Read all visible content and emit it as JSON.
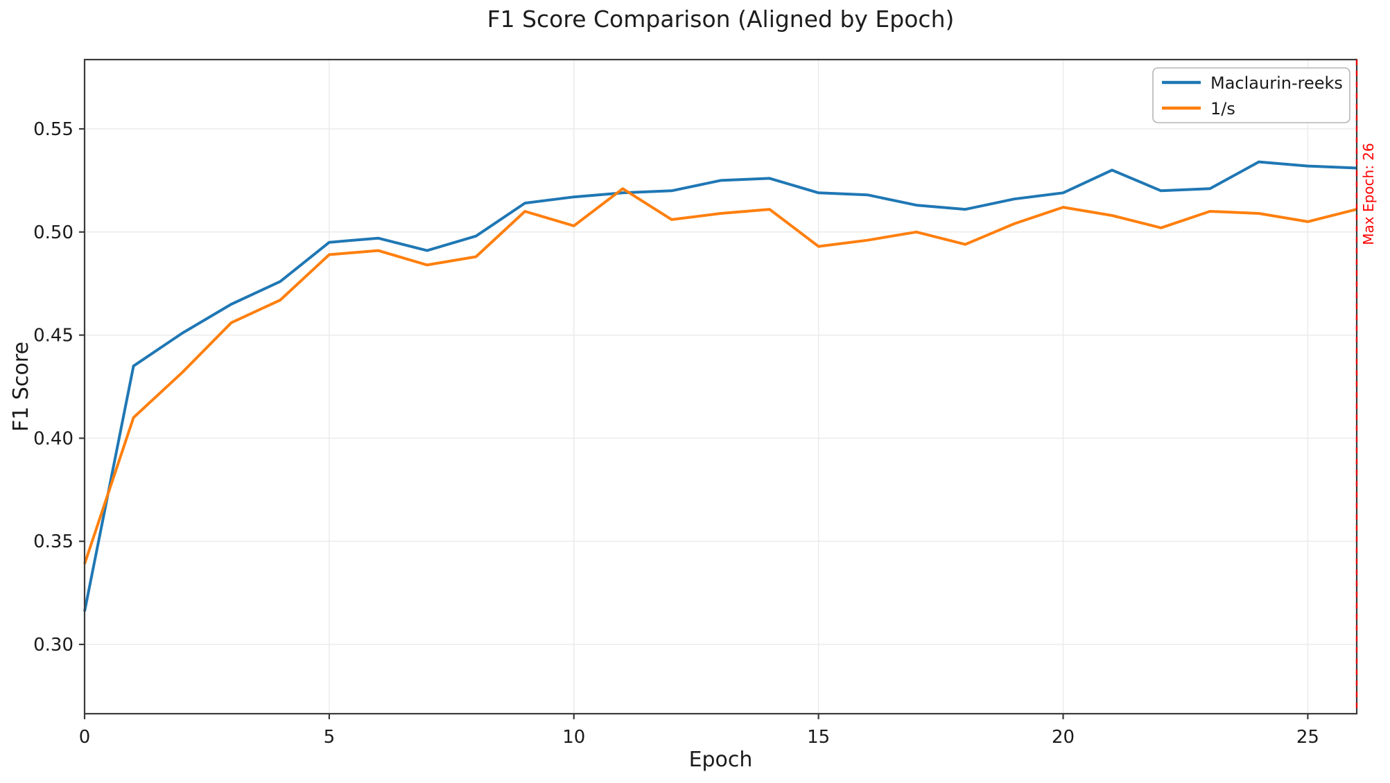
{
  "title": "F1 Score Comparison (Aligned by Epoch)",
  "axes": {
    "xlabel": "Epoch",
    "ylabel": "F1 Score"
  },
  "legend": {
    "position": "upper right",
    "entries": [
      {
        "label": "Maclaurin-reeks",
        "color": "#1f77b4"
      },
      {
        "label": "1/s",
        "color": "#ff7f0e"
      }
    ]
  },
  "annotation": {
    "label": "Max Epoch: 26",
    "x": 26,
    "color": "#ff0000",
    "line_style": "dashed"
  },
  "style": {
    "accent_blue": "#1f77b4",
    "accent_orange": "#ff7f0e",
    "annotation_red": "#ff0000",
    "spine_color": "#3a3a3a",
    "grid_color": "#ebebeb",
    "tick_label_color": "#1a1a1a",
    "legend_border_color": "#b5b5b5",
    "background": "#ffffff"
  },
  "chart_data": {
    "type": "line",
    "title": "F1 Score Comparison (Aligned by Epoch)",
    "xlabel": "Epoch",
    "ylabel": "F1 Score",
    "xlim": [
      0,
      26
    ],
    "ylim": [
      0.2664,
      0.5836
    ],
    "xticks": [
      0,
      5,
      10,
      15,
      20,
      25
    ],
    "xtick_labels": [
      "0",
      "5",
      "10",
      "15",
      "20",
      "25"
    ],
    "yticks": [
      0.3,
      0.35,
      0.4,
      0.45,
      0.5,
      0.55
    ],
    "ytick_labels": [
      "0.30",
      "0.35",
      "0.40",
      "0.45",
      "0.50",
      "0.55"
    ],
    "grid": true,
    "legend_position": "upper right",
    "x": [
      0,
      1,
      2,
      3,
      4,
      5,
      6,
      7,
      8,
      9,
      10,
      11,
      12,
      13,
      14,
      15,
      16,
      17,
      18,
      19,
      20,
      21,
      22,
      23,
      24,
      25,
      26
    ],
    "series": [
      {
        "name": "Maclaurin-reeks",
        "color": "#1f77b4",
        "values": [
          0.316,
          0.435,
          0.451,
          0.465,
          0.476,
          0.495,
          0.497,
          0.491,
          0.498,
          0.514,
          0.517,
          0.519,
          0.52,
          0.525,
          0.526,
          0.519,
          0.518,
          0.513,
          0.511,
          0.516,
          0.519,
          0.53,
          0.52,
          0.521,
          0.534,
          0.532,
          0.531
        ]
      },
      {
        "name": "1/s",
        "color": "#ff7f0e",
        "values": [
          0.339,
          0.41,
          0.432,
          0.456,
          0.467,
          0.489,
          0.491,
          0.484,
          0.488,
          0.51,
          0.503,
          0.521,
          0.506,
          0.509,
          0.511,
          0.493,
          0.496,
          0.5,
          0.494,
          0.504,
          0.512,
          0.508,
          0.502,
          0.51,
          0.509,
          0.505,
          0.511
        ]
      }
    ],
    "vline": {
      "x": 26,
      "label": "Max Epoch: 26",
      "color": "#ff0000",
      "style": "dashed"
    }
  }
}
